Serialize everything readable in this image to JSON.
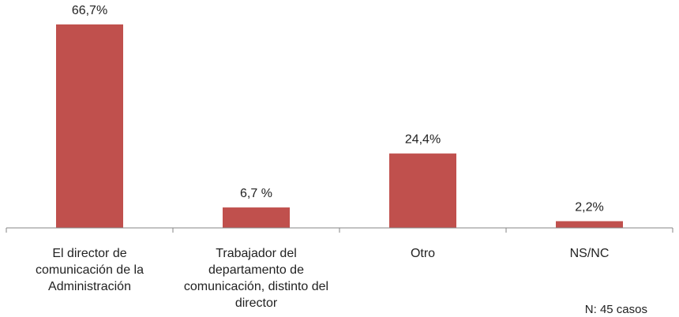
{
  "chart_data": {
    "type": "bar",
    "categories": [
      "El director de comunicación de la Administración",
      "Trabajador del departamento de comunicación, distinto del director",
      "Otro",
      "NS/NC"
    ],
    "category_lines": [
      [
        "El director de",
        "comunicación de la",
        "Administración"
      ],
      [
        "Trabajador del",
        "departamento de",
        "comunicación, distinto del",
        "director"
      ],
      [
        "Otro"
      ],
      [
        "NS/NC"
      ]
    ],
    "values": [
      66.7,
      6.7,
      24.4,
      2.2
    ],
    "data_labels": [
      "66,7%",
      "6,7 %",
      "24,4%",
      "2,2%"
    ],
    "ylim": [
      0,
      70
    ],
    "grid": false,
    "legend": "none",
    "bar_color": "#C0504D",
    "axis_color": "#868686",
    "note": "N: 45 casos"
  }
}
